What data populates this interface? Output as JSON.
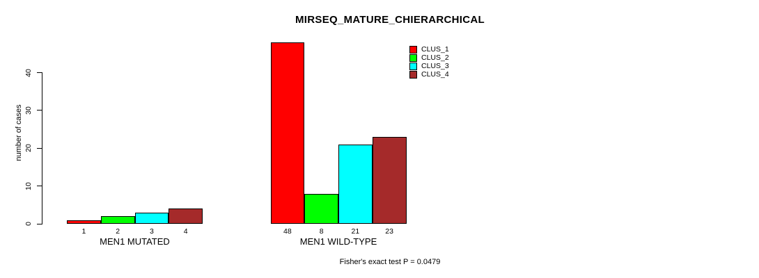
{
  "title": "MIRSEQ_MATURE_CHIERARCHICAL",
  "y_axis": {
    "label": "number of cases",
    "ticks": [
      0,
      10,
      20,
      30,
      40
    ]
  },
  "footnote": "Fisher's exact test P = 0.0479",
  "legend": {
    "entries": [
      {
        "label": "CLUS_1",
        "color": "#FF0000"
      },
      {
        "label": "CLUS_2",
        "color": "#00FF00"
      },
      {
        "label": "CLUS_3",
        "color": "#00FFFF"
      },
      {
        "label": "CLUS_4",
        "color": "#A52A2A"
      }
    ]
  },
  "chart_data": {
    "type": "bar",
    "title": "MIRSEQ_MATURE_CHIERARCHICAL",
    "xlabel": "",
    "ylabel": "number of cases",
    "categories": [
      "MEN1 MUTATED",
      "MEN1 WILD-TYPE"
    ],
    "series": [
      {
        "name": "CLUS_1",
        "color": "#FF0000",
        "values": [
          1,
          48
        ]
      },
      {
        "name": "CLUS_2",
        "color": "#00FF00",
        "values": [
          2,
          8
        ]
      },
      {
        "name": "CLUS_3",
        "color": "#00FFFF",
        "values": [
          3,
          21
        ]
      },
      {
        "name": "CLUS_4",
        "color": "#A52A2A",
        "values": [
          4,
          23
        ]
      }
    ],
    "bar_value_labels": [
      [
        1,
        2,
        3,
        4
      ],
      [
        48,
        8,
        21,
        23
      ]
    ],
    "ylim": [
      0,
      48
    ],
    "yticks": [
      0,
      10,
      20,
      30,
      40
    ],
    "grid": false,
    "bar_border_color": "#000000",
    "legend_position": "inside-top-right-of-bars",
    "annotation": "Fisher's exact test P = 0.0479"
  }
}
